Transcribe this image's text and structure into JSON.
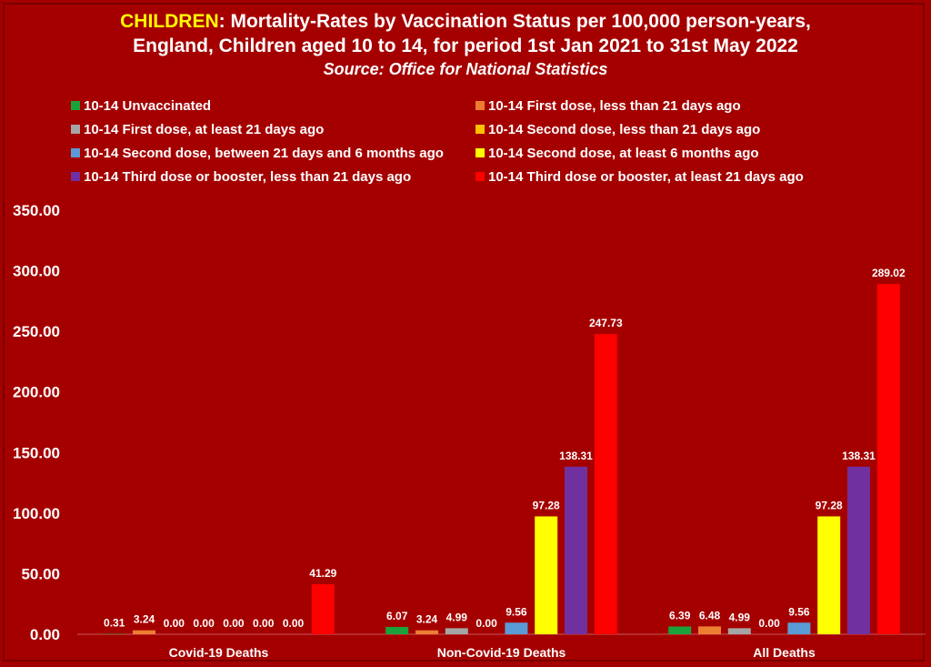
{
  "title": {
    "highlight": "CHILDREN",
    "line1_rest": ": Mortality-Rates by Vaccination Status per 100,000 person-years,",
    "line2": "England, Children aged 10 to 14, for period 1st Jan 2021 to 31st May 2022",
    "source": "Source: Office for National Statistics"
  },
  "colors": {
    "background": "#a50000",
    "highlight": "#ffff00",
    "gridline": "#ffffff"
  },
  "chart_data": {
    "type": "bar",
    "categories": [
      "Covid-19 Deaths",
      "Non-Covid-19 Deaths",
      "All Deaths"
    ],
    "ylim": [
      0,
      350
    ],
    "yticks": [
      "0.00",
      "50.00",
      "100.00",
      "150.00",
      "200.00",
      "250.00",
      "300.00",
      "350.00"
    ],
    "legend_position": "top",
    "grid": false,
    "series": [
      {
        "name": "10-14 Unvaccinated",
        "color": "#1aa33a",
        "values": [
          0.31,
          6.07,
          6.39
        ],
        "labels": [
          "0.31",
          "6.07",
          "6.39"
        ]
      },
      {
        "name": "10-14 First dose, less than 21 days ago",
        "color": "#ed7d31",
        "values": [
          3.24,
          3.24,
          6.48
        ],
        "labels": [
          "3.24",
          "3.24",
          "6.48"
        ]
      },
      {
        "name": "10-14 First dose, at least 21 days ago",
        "color": "#a5a5a5",
        "values": [
          0.0,
          4.99,
          4.99
        ],
        "labels": [
          "0.00",
          "4.99",
          "4.99"
        ]
      },
      {
        "name": "10-14 Second dose, less than 21 days ago",
        "color": "#ffc000",
        "values": [
          0.0,
          0.0,
          0.0
        ],
        "labels": [
          "0.00",
          "0.00",
          "0.00"
        ]
      },
      {
        "name": "10-14 Second dose, between 21 days and 6 months ago",
        "color": "#5b9bd5",
        "values": [
          0.0,
          9.56,
          9.56
        ],
        "labels": [
          "0.00",
          "9.56",
          "9.56"
        ]
      },
      {
        "name": "10-14 Second dose, at least 6 months ago",
        "color": "#ffff00",
        "values": [
          0.0,
          97.28,
          97.28
        ],
        "labels": [
          "0.00",
          "97.28",
          "97.28"
        ]
      },
      {
        "name": "10-14 Third dose or booster, less than 21 days ago",
        "color": "#7030a0",
        "values": [
          0.0,
          138.31,
          138.31
        ],
        "labels": [
          "0.00",
          "138.31",
          "138.31"
        ]
      },
      {
        "name": "10-14 Third dose or booster, at least 21 days ago",
        "color": "#ff0000",
        "values": [
          41.29,
          247.73,
          289.02
        ],
        "labels": [
          "41.29",
          "247.73",
          "289.02"
        ]
      }
    ]
  }
}
